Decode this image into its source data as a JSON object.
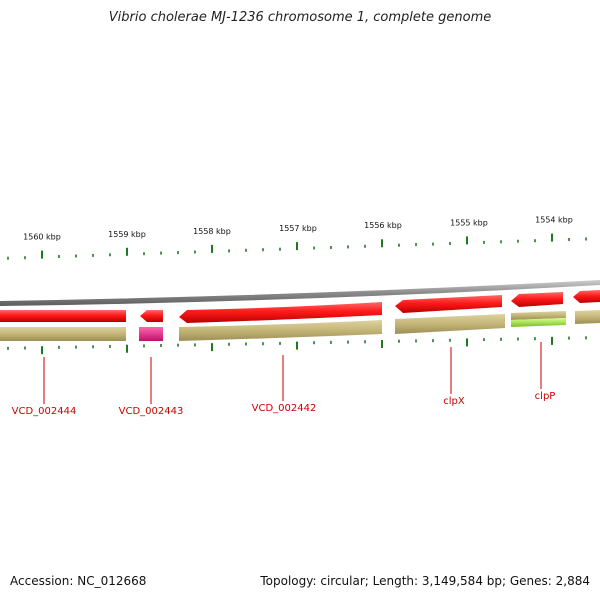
{
  "title": "Vibrio cholerae MJ-1236 chromosome 1, complete genome",
  "footer": {
    "accession": "Accession: NC_012668",
    "stats": "Topology: circular; Length: 3,149,584 bp; Genes: 2,884"
  },
  "ruler": {
    "labels": [
      "1560 kbp",
      "1559 kbp",
      "1558 kbp",
      "1557 kbp",
      "1556 kbp",
      "1555 kbp",
      "1554 kbp"
    ],
    "tick_color": "#1e7a1e"
  },
  "colors": {
    "cds": "#ff1a1a",
    "gene_track": "#c8b878",
    "gene_track_rna": "#e0187a",
    "gene_track_highlight": "#aaf040",
    "backbone": "#8a8a8a",
    "label": "#cc0000"
  },
  "genes": [
    {
      "label": "VCD_002444"
    },
    {
      "label": "VCD_002443"
    },
    {
      "label": "VCD_002442"
    },
    {
      "label": "clpX"
    },
    {
      "label": "clpP"
    }
  ]
}
